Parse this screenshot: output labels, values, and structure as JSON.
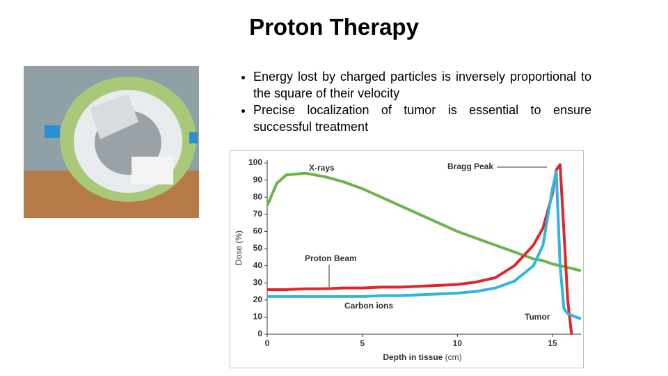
{
  "title": "Proton Therapy",
  "bullets": [
    "Energy lost by charged particles is inversely proportional to the square of their velocity",
    "Precise localization of tumor is essential to ensure successful treatment"
  ],
  "chart_data": {
    "type": "line",
    "x_label": "Depth in tissue",
    "x_unit": "(cm)",
    "y_label": "Dose (%)",
    "x": [
      0,
      0.5,
      1,
      2,
      3,
      4,
      5,
      6,
      7,
      8,
      9,
      10,
      11,
      12,
      13,
      14,
      14.5,
      15,
      15.2,
      15.4,
      15.6,
      15.8,
      16,
      16.5
    ],
    "xlim": [
      0,
      16.5
    ],
    "xticks": [
      0,
      5,
      10,
      15
    ],
    "ylim": [
      0,
      100
    ],
    "yticks": [
      0,
      10,
      20,
      30,
      40,
      50,
      60,
      70,
      80,
      90,
      100
    ],
    "series": [
      {
        "name": "X-rays",
        "color": "#6ab547",
        "values": [
          75,
          88,
          93,
          94,
          92,
          89,
          85,
          80,
          75,
          70,
          65,
          60,
          56,
          52,
          48,
          44,
          43,
          41,
          40.5,
          40,
          39.5,
          39,
          38.5,
          37
        ]
      },
      {
        "name": "Proton Beam",
        "color": "#e0262b",
        "values": [
          26,
          26,
          26,
          26.5,
          26.5,
          27,
          27,
          27.5,
          27.5,
          28,
          28.5,
          29,
          30.5,
          33,
          40,
          52,
          62,
          82,
          96,
          99,
          60,
          20,
          0,
          null
        ]
      },
      {
        "name": "Carbon ions",
        "color": "#2fb4e4",
        "values": [
          22,
          22,
          22,
          22,
          22,
          22,
          22,
          22.5,
          22.5,
          23,
          23.5,
          24,
          25,
          27,
          31,
          40,
          52,
          85,
          95,
          40,
          15,
          12,
          11,
          9
        ]
      }
    ],
    "annotations": [
      "Bragg Peak",
      "Tumor"
    ]
  }
}
